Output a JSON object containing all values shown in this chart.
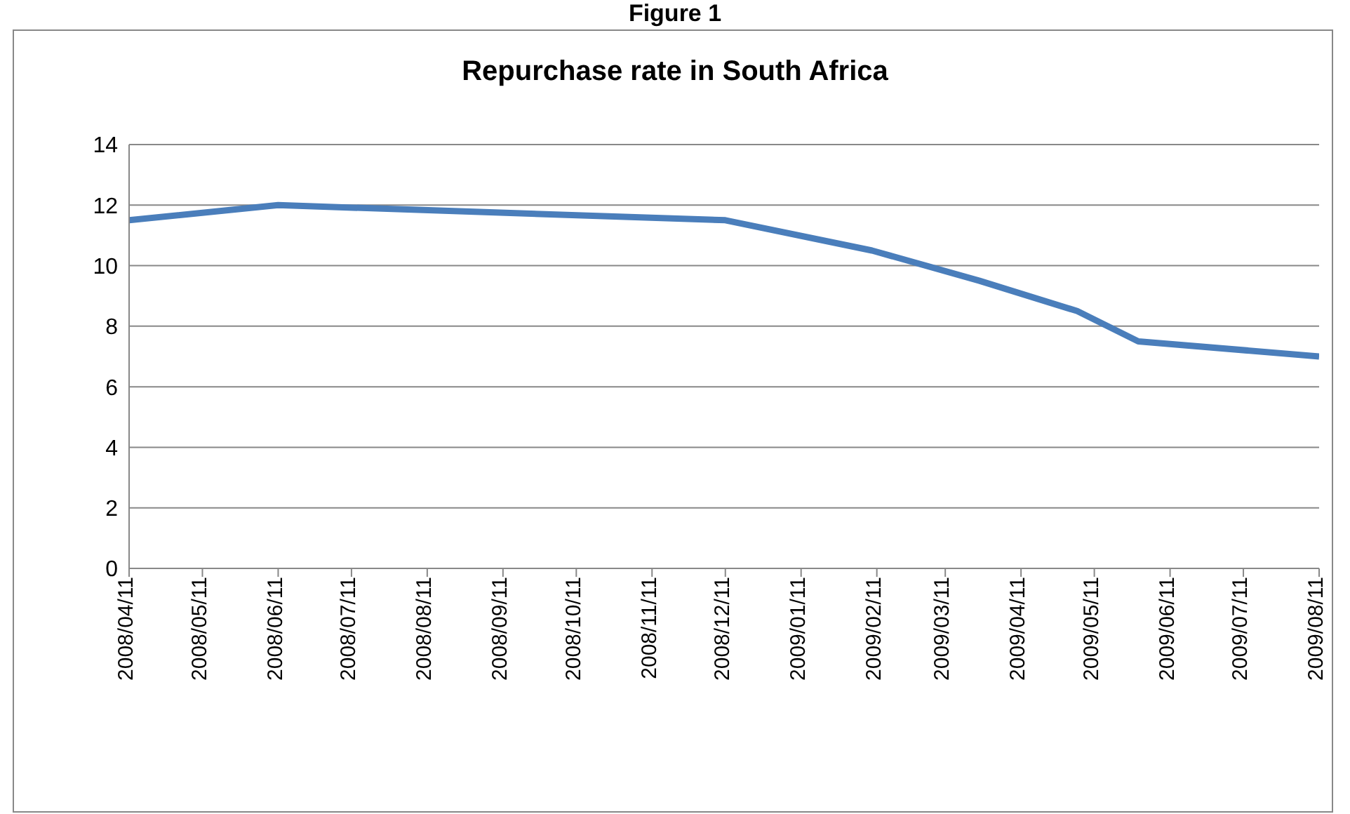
{
  "chart_data": {
    "type": "line",
    "title": "Repurchase rate in South Africa",
    "annotations": [
      "Figure 1"
    ],
    "x": [
      "2008-04-11",
      "2008-06-11",
      "2008-12-11",
      "2009-02-09",
      "2009-03-25",
      "2009-05-04",
      "2009-05-29",
      "2009-08-11"
    ],
    "series": [
      {
        "color": "#4a7ebb",
        "values": [
          11.5,
          12,
          11.5,
          10.5,
          9.5,
          8.5,
          7.5,
          7
        ]
      }
    ],
    "xlim": [
      "2008-04-11",
      "2009-08-11"
    ],
    "xticks": [
      {
        "value": "2008-04-11",
        "label": "2008/04/11"
      },
      {
        "value": "2008-05-11",
        "label": "2008/05/11"
      },
      {
        "value": "2008-06-11",
        "label": "2008/06/11"
      },
      {
        "value": "2008-07-11",
        "label": "2008/07/11"
      },
      {
        "value": "2008-08-11",
        "label": "2008/08/11"
      },
      {
        "value": "2008-09-11",
        "label": "2008/09/11"
      },
      {
        "value": "2008-10-11",
        "label": "2008/10/11"
      },
      {
        "value": "2008-11-11",
        "label": "2008/11/11"
      },
      {
        "value": "2008-12-11",
        "label": "2008/12/11"
      },
      {
        "value": "2009-01-11",
        "label": "2009/01/11"
      },
      {
        "value": "2009-02-11",
        "label": "2009/02/11"
      },
      {
        "value": "2009-03-11",
        "label": "2009/03/11"
      },
      {
        "value": "2009-04-11",
        "label": "2009/04/11"
      },
      {
        "value": "2009-05-11",
        "label": "2009/05/11"
      },
      {
        "value": "2009-06-11",
        "label": "2009/06/11"
      },
      {
        "value": "2009-07-11",
        "label": "2009/07/11"
      },
      {
        "value": "2009-08-11",
        "label": "2009/08/11"
      }
    ],
    "ylim": [
      0,
      14
    ],
    "yticks": [
      0,
      2,
      4,
      6,
      8,
      10,
      12,
      14
    ],
    "grid": "y",
    "legend": false,
    "marker": "none",
    "line_style": "solid"
  }
}
